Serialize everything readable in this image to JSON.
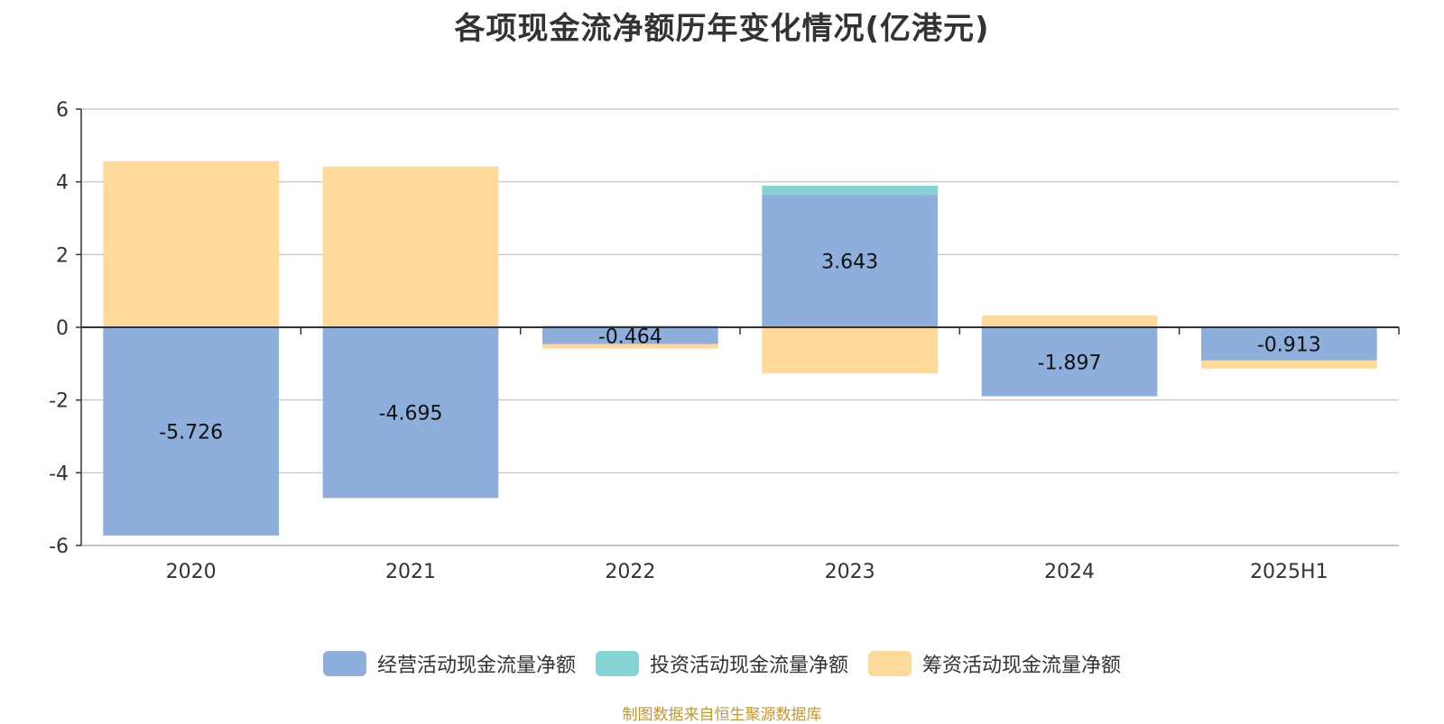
{
  "chart_data": {
    "type": "bar",
    "stacked": true,
    "title": "各项现金流净额历年变化情况(亿港元)",
    "categories": [
      "2020",
      "2021",
      "2022",
      "2023",
      "2024",
      "2025H1"
    ],
    "series": [
      {
        "name": "经营活动现金流量净额",
        "color": "#8eaedb",
        "values": [
          -5.726,
          -4.695,
          -0.464,
          3.643,
          -1.897,
          -0.913
        ],
        "labels": [
          "-5.726",
          "-4.695",
          "-0.464",
          "3.643",
          "-1.897",
          "-0.913"
        ]
      },
      {
        "name": "投资活动现金流量净额",
        "color": "#86d3d6",
        "values": [
          0,
          0,
          0.04,
          0.25,
          0,
          0
        ]
      },
      {
        "name": "筹资活动现金流量净额",
        "color": "#ffd999",
        "values": [
          4.57,
          4.42,
          -0.12,
          -1.27,
          0.32,
          -0.22
        ]
      }
    ],
    "ylim": [
      -6,
      6
    ],
    "yticks": [
      -6,
      -4,
      -2,
      0,
      2,
      4,
      6
    ],
    "grid": true,
    "legend_position": "bottom"
  },
  "source_note": "制图数据来自恒生聚源数据库"
}
